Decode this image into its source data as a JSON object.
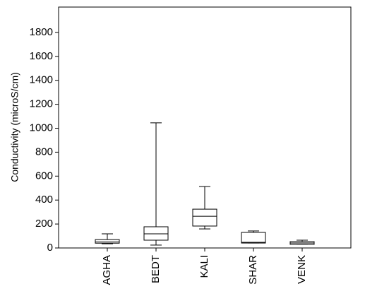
{
  "chart_data": {
    "type": "box",
    "y_label": "Conductivity (microS/cm)",
    "categories": [
      "AGHA",
      "BEDT",
      "KALI",
      "SHAR",
      "VENK"
    ],
    "boxes": [
      {
        "min": 35,
        "q1": 40,
        "median": 50,
        "q3": 70,
        "max": 118
      },
      {
        "min": 24,
        "q1": 65,
        "median": 118,
        "q3": 177,
        "max": 1045
      },
      {
        "min": 159,
        "q1": 183,
        "median": 265,
        "q3": 324,
        "max": 513
      },
      {
        "min": 41,
        "q1": 41,
        "median": 47,
        "q3": 130,
        "max": 142
      },
      {
        "min": 30,
        "q1": 30,
        "median": 41,
        "q3": 53,
        "max": 65
      }
    ],
    "color": "#ffffff",
    "ylim": [
      0,
      2000
    ],
    "yticks": [
      0,
      200,
      400,
      600,
      800,
      1000,
      1200,
      1400,
      1600,
      1800
    ],
    "grid": false
  }
}
